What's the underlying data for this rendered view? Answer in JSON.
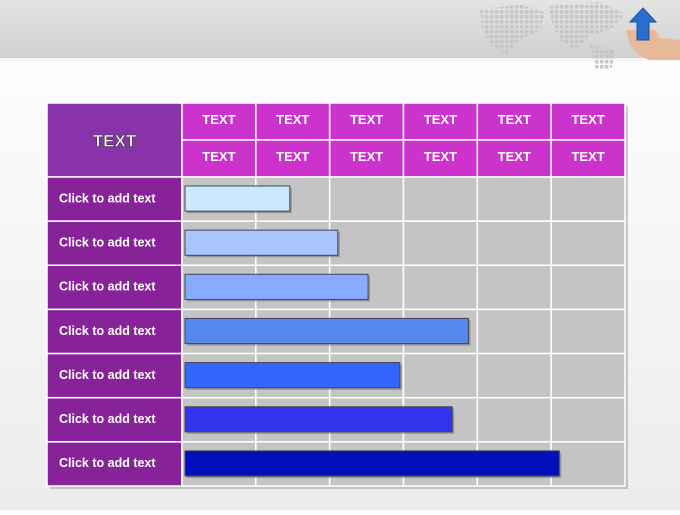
{
  "table": {
    "corner": "TEXT",
    "header_rows": [
      [
        "TEXT",
        "TEXT",
        "TEXT",
        "TEXT",
        "TEXT",
        "TEXT"
      ],
      [
        "TEXT",
        "TEXT",
        "TEXT",
        "TEXT",
        "TEXT",
        "TEXT"
      ]
    ],
    "rows": [
      {
        "label": "Click to add text",
        "bar_end": 1.46,
        "color": "#cce8ff"
      },
      {
        "label": "Click to add text",
        "bar_end": 2.11,
        "color": "#aac4ff"
      },
      {
        "label": "Click to add text",
        "bar_end": 2.52,
        "color": "#88aaff"
      },
      {
        "label": "Click to add text",
        "bar_end": 3.88,
        "color": "#5588ee"
      },
      {
        "label": "Click to add text",
        "bar_end": 2.95,
        "color": "#3366ff"
      },
      {
        "label": "Click to add text",
        "bar_end": 3.66,
        "color": "#3333ee"
      },
      {
        "label": "Click to add text",
        "bar_end": 5.11,
        "color": "#0011bb"
      }
    ]
  }
}
